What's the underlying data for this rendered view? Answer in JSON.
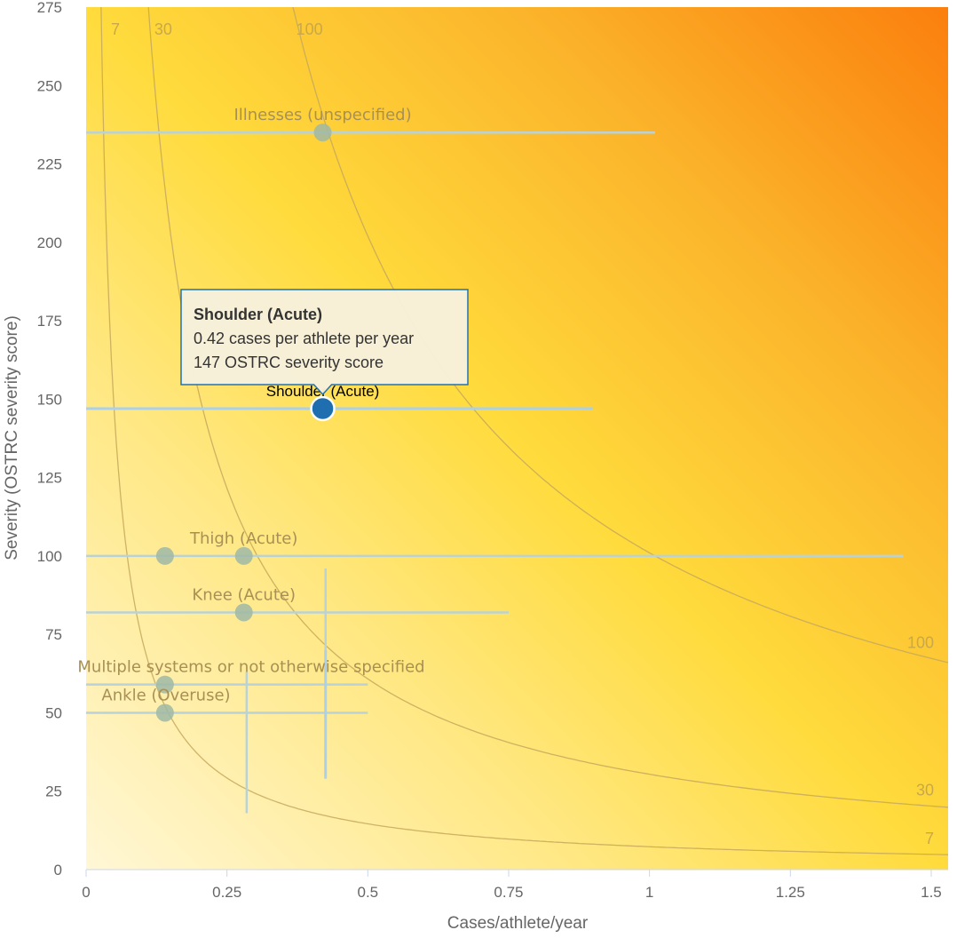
{
  "chart_data": {
    "type": "scatter",
    "xlabel": "Cases/athlete/year",
    "ylabel": "Severity (OSTRC severity score)",
    "xlim": [
      0,
      1.53
    ],
    "ylim": [
      0,
      275
    ],
    "x_ticks": [
      0,
      0.25,
      0.5,
      0.75,
      1,
      1.25,
      1.5
    ],
    "x_tick_labels": [
      "0",
      "0.25",
      "0.5",
      "0.75",
      "1",
      "1.25",
      "1.5"
    ],
    "y_ticks": [
      0,
      25,
      50,
      75,
      100,
      125,
      150,
      175,
      200,
      225,
      250,
      275
    ],
    "y_tick_labels": [
      "0",
      "25",
      "50",
      "75",
      "100",
      "125",
      "150",
      "175",
      "200",
      "225",
      "250",
      "275"
    ],
    "background": "gradient from light yellow (bottom-left) to orange (top-right)",
    "isolines": [
      {
        "value": 7,
        "label": "7"
      },
      {
        "value": 30,
        "label": "30"
      },
      {
        "value": 100,
        "label": "100"
      }
    ],
    "points": [
      {
        "name": "Illnesses (unspecified)",
        "x": 0.42,
        "y": 235,
        "x_err": [
          0,
          1.01
        ],
        "label": "Illnesses (unspecified)",
        "active": false
      },
      {
        "name": "Shoulder (Acute)",
        "x": 0.42,
        "y": 147,
        "x_err": [
          0,
          0.9
        ],
        "label": "Shoulder (Acute)",
        "active": true
      },
      {
        "name": "Thigh (Acute) A",
        "x": 0.14,
        "y": 100,
        "x_err": null,
        "label": "",
        "active": false
      },
      {
        "name": "Thigh (Acute)",
        "x": 0.28,
        "y": 100,
        "x_err": [
          0,
          1.45
        ],
        "label": "Thigh (Acute)",
        "active": false
      },
      {
        "name": "Knee (Acute)",
        "x": 0.28,
        "y": 82,
        "x_err": [
          0,
          0.75
        ],
        "label": "Knee (Acute)",
        "active": false
      },
      {
        "name": "Multiple systems or not otherwise specified",
        "x": 0.14,
        "y": 59,
        "x_err": [
          0,
          0.5
        ],
        "label": "Multiple systems or not otherwise specified",
        "active": false
      },
      {
        "name": "Ankle (Overuse)",
        "x": 0.14,
        "y": 50,
        "x_err": [
          0,
          0.5
        ],
        "label": "Ankle (Overuse)",
        "active": false
      }
    ],
    "vertical_errors": [
      {
        "x": 0.285,
        "y_range": [
          18,
          63
        ],
        "active": false
      },
      {
        "x": 0.425,
        "y_range": [
          29,
          96
        ],
        "active": false
      },
      {
        "x": 0.425,
        "y_range": [
          29,
          70
        ],
        "active": true
      }
    ],
    "tooltip": {
      "title": "Shoulder (Acute)",
      "line1": "0.42 cases per athlete per year",
      "line2": "147 OSTRC severity score"
    },
    "colors": {
      "active_point": "#1f6fb0",
      "active_errorbar": "#a9d0ef",
      "inactive_point": "#9fb8a6",
      "inactive_errorbar": "#b8d2d8",
      "isoline": "#c5a85c",
      "tooltip_border": "#1f6fb0",
      "tooltip_bg": "#f7f1dc"
    }
  }
}
